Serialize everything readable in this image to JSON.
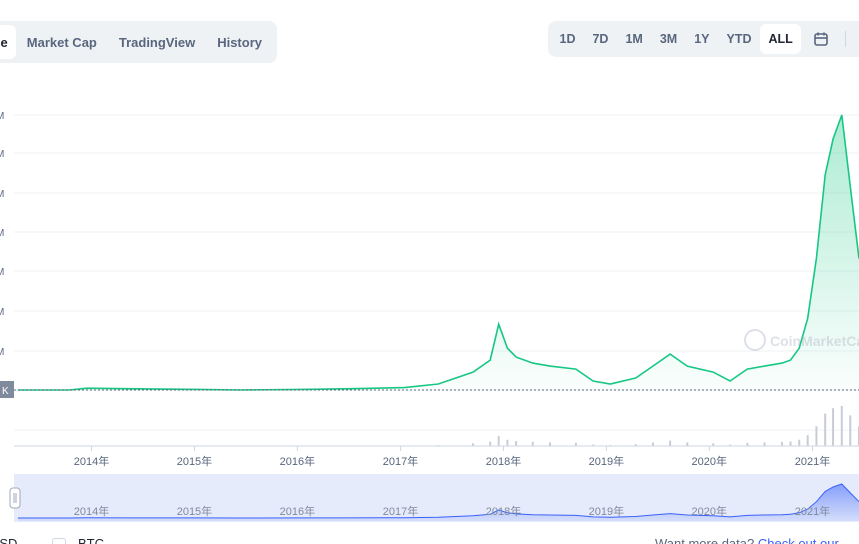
{
  "tabs_left": [
    {
      "label": "ce",
      "active": true
    },
    {
      "label": "Market Cap",
      "active": false
    },
    {
      "label": "TradingView",
      "active": false
    },
    {
      "label": "History",
      "active": false
    }
  ],
  "tabs_right": [
    {
      "label": "1D",
      "active": false
    },
    {
      "label": "7D",
      "active": false
    },
    {
      "label": "1M",
      "active": false
    },
    {
      "label": "3M",
      "active": false
    },
    {
      "label": "1Y",
      "active": false
    },
    {
      "label": "YTD",
      "active": false
    },
    {
      "label": "ALL",
      "active": true
    }
  ],
  "icons": {
    "calendar": "calendar-icon",
    "slider_handle": "drag-handle-icon"
  },
  "watermark": "CoinMarketCap",
  "colors": {
    "line": "#16c784",
    "volume": "#c7ccd6",
    "nav_fill": "#e6ebfb",
    "nav_line": "#3861fb"
  },
  "footer": {
    "currency": "USD",
    "btc_label": "BTC",
    "more_data": "Want more data? ",
    "link": "Check out our"
  },
  "chart_data": {
    "type": "area",
    "title": "",
    "x_tick_labels": [
      "2014年",
      "2015年",
      "2016年",
      "2017年",
      "2018年",
      "2019年",
      "2020年",
      "2021年"
    ],
    "y_tick_labels": [
      "K",
      "M",
      "M",
      "M",
      "M",
      "M",
      "M",
      "M"
    ],
    "current_label": "K",
    "grid": true,
    "series": [
      {
        "x": [
          "2013-04",
          "2013-10",
          "2013-12",
          "2014-06",
          "2015-01",
          "2015-06",
          "2016-01",
          "2016-06",
          "2017-01",
          "2017-05",
          "2017-09",
          "2017-11",
          "2017-12",
          "2018-01",
          "2018-02",
          "2018-04",
          "2018-06",
          "2018-09",
          "2018-11",
          "2019-01",
          "2019-04",
          "2019-06",
          "2019-08",
          "2019-10",
          "2020-01",
          "2020-03",
          "2020-05",
          "2020-07",
          "2020-09",
          "2020-10",
          "2020-11",
          "2020-12",
          "2021-01",
          "2021-02",
          "2021-03",
          "2021-04",
          "2021-05",
          "2021-06"
        ],
        "y": [
          0.0,
          0.0,
          0.03,
          0.02,
          0.01,
          0.0,
          0.01,
          0.02,
          0.04,
          0.1,
          0.3,
          0.5,
          1.1,
          0.7,
          0.55,
          0.45,
          0.4,
          0.35,
          0.15,
          0.1,
          0.2,
          0.4,
          0.6,
          0.4,
          0.3,
          0.15,
          0.35,
          0.4,
          0.45,
          0.5,
          0.7,
          1.2,
          2.2,
          3.6,
          4.2,
          4.6,
          3.4,
          2.2
        ]
      }
    ]
  }
}
